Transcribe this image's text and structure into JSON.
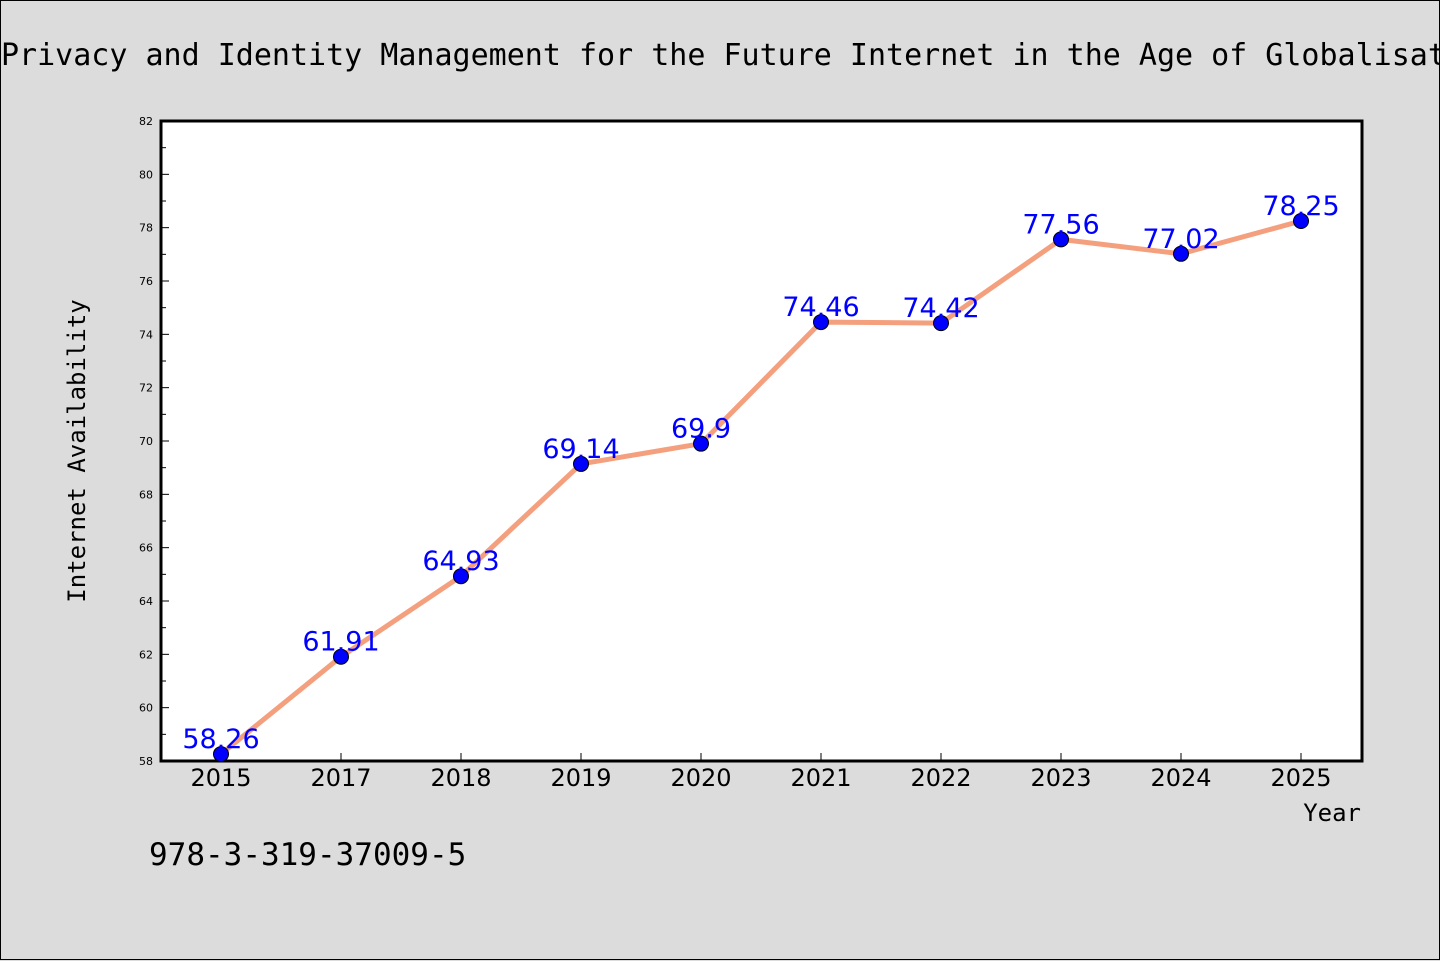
{
  "chart_data": {
    "type": "line",
    "title": "Privacy and Identity Management for the Future Internet in the Age of Globalisat",
    "xlabel": "Year",
    "ylabel": "Internet Availability",
    "categories": [
      "2015",
      "2017",
      "2018",
      "2019",
      "2020",
      "2021",
      "2022",
      "2023",
      "2024",
      "2025"
    ],
    "values": [
      58.26,
      61.91,
      64.93,
      69.14,
      69.9,
      74.46,
      74.42,
      77.56,
      77.02,
      78.25
    ],
    "data_labels": [
      "58.26",
      "61.91",
      "64.93",
      "69.14",
      "69.9",
      "74.46",
      "74.42",
      "77.56",
      "77.02",
      "78.25"
    ],
    "ylim": [
      58,
      82
    ],
    "yticks": [
      58,
      60,
      62,
      64,
      66,
      68,
      70,
      72,
      74,
      76,
      78,
      80,
      82
    ],
    "grid": false,
    "legend": "none",
    "colors": {
      "line": "#f4a07e",
      "marker": "#0000ff",
      "label": "#0000ff",
      "background": "#dcdcdc",
      "plot_background": "#ffffff"
    }
  },
  "annotation": "978-3-319-37009-5"
}
